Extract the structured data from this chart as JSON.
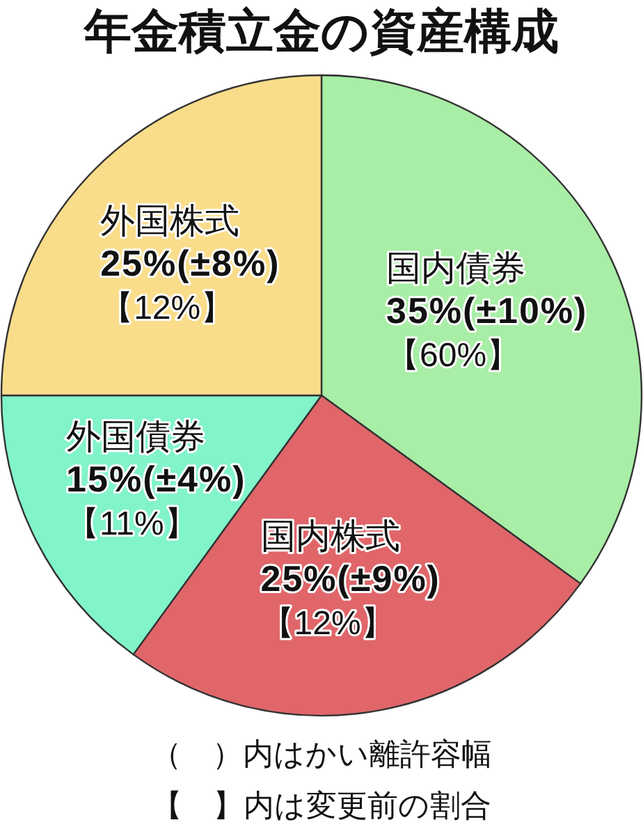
{
  "chart_data": {
    "type": "pie",
    "title": "年金積立金の資産構成",
    "categories": [
      "国内債券",
      "国内株式",
      "外国債券",
      "外国株式"
    ],
    "values": [
      35,
      25,
      15,
      25
    ],
    "colors": [
      "#a8eea6",
      "#e0666a",
      "#82f4ca",
      "#fadd8a"
    ],
    "value_labels": [
      "35%(±10%)\n【60%】",
      "25%(±9%)\n【12%】",
      "15%(±4%)\n【11%】",
      "25%(±8%)\n【12%】"
    ],
    "annotations": [
      "（　）内はかい離許容幅",
      "【　】内は変更前の割合"
    ]
  }
}
